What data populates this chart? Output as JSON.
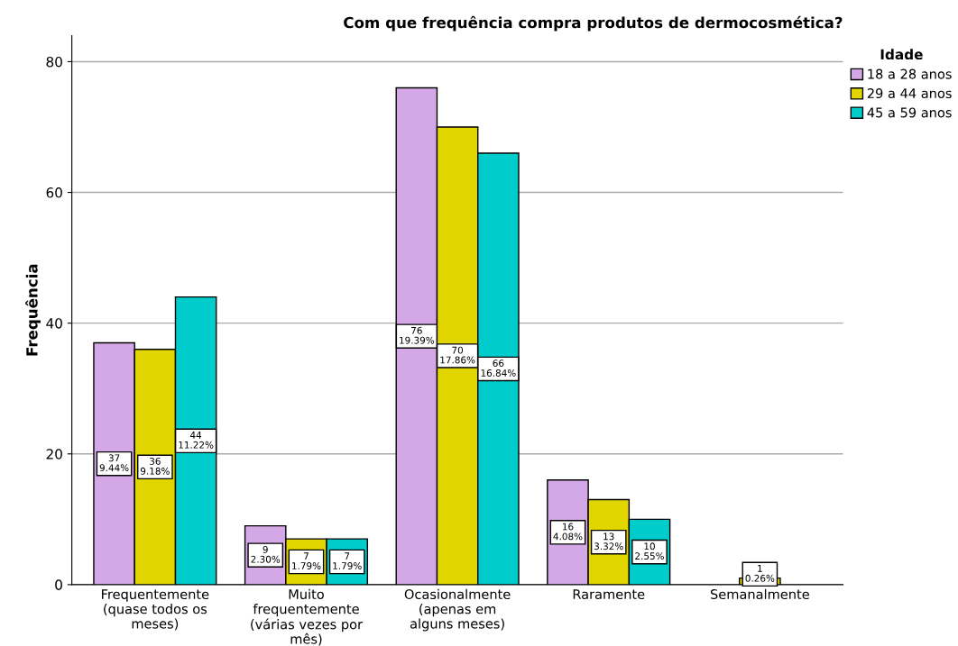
{
  "chart_data": {
    "type": "bar",
    "title": "Com que frequência compra produtos de dermocosmética?",
    "ylabel": "Frequência",
    "legend_title": "Idade",
    "categories": [
      "Frequentemente\n(quase todos os\nmeses)",
      "Muito\nfrequentemente\n(várias vezes por\nmês)",
      "Ocasionalmente\n(apenas em\nalguns meses)",
      "Raramente",
      "Semanalmente"
    ],
    "series": [
      {
        "name": "18 a 28 anos",
        "color": "#d4a8e6",
        "values": [
          37,
          9,
          76,
          16,
          null
        ],
        "value_labels": [
          "37\n9.44%",
          "9\n2.30%",
          "76\n19.39%",
          "16\n4.08%",
          null
        ]
      },
      {
        "name": "29 a 44 anos",
        "color": "#e2d600",
        "values": [
          36,
          7,
          70,
          13,
          1
        ],
        "value_labels": [
          "36\n9.18%",
          "7\n1.79%",
          "70\n17.86%",
          "13\n3.32%",
          "1\n0.26%"
        ]
      },
      {
        "name": "45 a 59 anos",
        "color": "#00cccc",
        "values": [
          44,
          7,
          66,
          10,
          null
        ],
        "value_labels": [
          "44\n11.22%",
          "7\n1.79%",
          "66\n16.84%",
          "10\n2.55%",
          null
        ]
      }
    ],
    "ylim": [
      0,
      84
    ],
    "yticks": [
      0,
      20,
      40,
      60,
      80
    ],
    "grid": "y",
    "legend": "top right"
  }
}
